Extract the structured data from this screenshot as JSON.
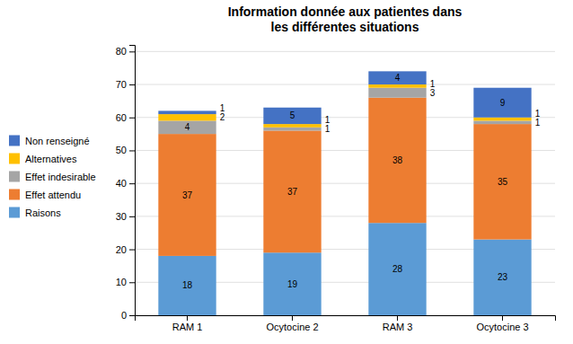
{
  "chart_data": {
    "type": "bar",
    "stacked": true,
    "title": "Information donnée aux patientes dans\nles différentes situations",
    "categories": [
      "RAM 1",
      "Ocytocine 2",
      "RAM 3",
      "Ocytocine 3"
    ],
    "series": [
      {
        "name": "Raisons",
        "color": "#5B9BD5",
        "values": [
          18,
          19,
          28,
          23
        ]
      },
      {
        "name": "Effet attendu",
        "color": "#ED7D31",
        "values": [
          37,
          37,
          38,
          35
        ]
      },
      {
        "name": "Effet indesirable",
        "color": "#A5A5A5",
        "values": [
          4,
          1,
          3,
          1
        ]
      },
      {
        "name": "Alternatives",
        "color": "#FFC000",
        "values": [
          2,
          1,
          1,
          1
        ]
      },
      {
        "name": "Non renseigné",
        "color": "#4472C4",
        "values": [
          1,
          5,
          4,
          9
        ]
      }
    ],
    "ylim": [
      0,
      82
    ],
    "yticks": [
      0,
      10,
      20,
      30,
      40,
      50,
      60,
      70,
      80
    ],
    "grid": true,
    "legend": "left",
    "data_labels": true
  }
}
